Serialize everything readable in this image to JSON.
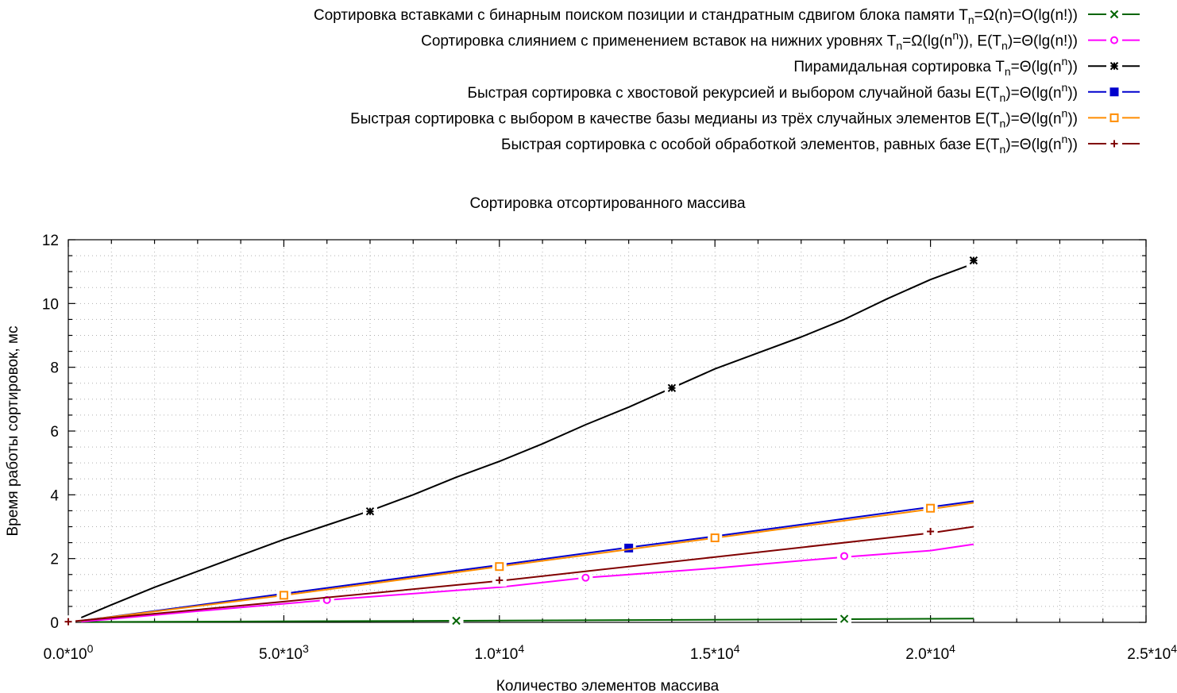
{
  "chart_data": {
    "type": "line",
    "title": "Сортировка отсортированного массива",
    "xlabel": "Количество элементов массива",
    "ylabel": "Время работы сортировок, мс",
    "xlim": [
      0,
      25000
    ],
    "ylim": [
      0,
      12
    ],
    "x_ticks": [
      {
        "value": 0,
        "mantissa": "0.0*10",
        "exp": "0"
      },
      {
        "value": 5000,
        "mantissa": "5.0*10",
        "exp": "3"
      },
      {
        "value": 10000,
        "mantissa": "1.0*10",
        "exp": "4"
      },
      {
        "value": 15000,
        "mantissa": "1.5*10",
        "exp": "4"
      },
      {
        "value": 20000,
        "mantissa": "2.0*10",
        "exp": "4"
      },
      {
        "value": 25000,
        "mantissa": "2.5*10",
        "exp": "4"
      }
    ],
    "y_ticks": [
      0,
      2,
      4,
      6,
      8,
      10,
      12
    ],
    "grid": true,
    "legend_position": "top-right",
    "series": [
      {
        "name_parts": [
          [
            "t",
            "Сортировка вставками с бинарным поиском позиции и стандратным сдвигом блока памяти T"
          ],
          [
            "sub",
            "n"
          ],
          [
            "t",
            "=Ω(n)=O(lg(n!))"
          ]
        ],
        "color": "#006400",
        "marker": "x",
        "x": [
          300,
          9000,
          18000,
          21000
        ],
        "y": [
          0.01,
          0.05,
          0.1,
          0.12
        ],
        "marker_points": [
          [
            9000,
            0.05
          ],
          [
            18000,
            0.11
          ]
        ]
      },
      {
        "name_parts": [
          [
            "t",
            "Сортировка слиянием с применением вставок на нижних уровнях T"
          ],
          [
            "sub",
            "n"
          ],
          [
            "t",
            "=Ω(lg(n"
          ],
          [
            "sup",
            "n"
          ],
          [
            "t",
            ")), E(T"
          ],
          [
            "sub",
            "n"
          ],
          [
            "t",
            ")=Θ(lg(n!))"
          ]
        ],
        "color": "#ff00ff",
        "marker": "circle",
        "x": [
          300,
          3000,
          6000,
          9000,
          10000,
          12000,
          15000,
          18000,
          20000,
          21000
        ],
        "y": [
          0.02,
          0.35,
          0.7,
          1.0,
          1.1,
          1.4,
          1.7,
          2.05,
          2.25,
          2.45
        ],
        "marker_points": [
          [
            6000,
            0.7
          ],
          [
            12000,
            1.4
          ],
          [
            18000,
            2.08
          ]
        ]
      },
      {
        "name_parts": [
          [
            "t",
            "Пирамидальная сортировка T"
          ],
          [
            "sub",
            "n"
          ],
          [
            "t",
            "=Θ(lg(n"
          ],
          [
            "sup",
            "n"
          ],
          [
            "t",
            "))"
          ]
        ],
        "color": "#000000",
        "marker": "star",
        "x": [
          300,
          1000,
          2000,
          3000,
          4000,
          5000,
          6000,
          7000,
          8000,
          9000,
          10000,
          11000,
          12000,
          13000,
          14000,
          15000,
          16000,
          17000,
          18000,
          19000,
          20000,
          21000
        ],
        "y": [
          0.15,
          0.55,
          1.1,
          1.6,
          2.1,
          2.6,
          3.05,
          3.5,
          4.0,
          4.55,
          5.05,
          5.6,
          6.2,
          6.75,
          7.35,
          7.95,
          8.45,
          8.95,
          9.5,
          10.15,
          10.75,
          11.25
        ],
        "marker_points": [
          [
            7000,
            3.48
          ],
          [
            14000,
            7.35
          ],
          [
            21000,
            11.35
          ]
        ]
      },
      {
        "name_parts": [
          [
            "t",
            "Быстрая сортировка с хвостовой рекурсией и выбором случайной базы E(T"
          ],
          [
            "sub",
            "n"
          ],
          [
            "t",
            ")=Θ(lg(n"
          ],
          [
            "sup",
            "n"
          ],
          [
            "t",
            "))"
          ]
        ],
        "color": "#0000cd",
        "marker": "square-filled",
        "x": [
          300,
          5000,
          10000,
          13000,
          15000,
          18000,
          21000
        ],
        "y": [
          0.05,
          0.9,
          1.8,
          2.35,
          2.7,
          3.25,
          3.8
        ],
        "marker_points": [
          [
            13000,
            2.33
          ]
        ]
      },
      {
        "name_parts": [
          [
            "t",
            "Быстрая сортировка с выбором в качестве базы медианы из трёх случайных элементов E(T"
          ],
          [
            "sub",
            "n"
          ],
          [
            "t",
            ")=Θ(lg(n"
          ],
          [
            "sup",
            "n"
          ],
          [
            "t",
            "))"
          ]
        ],
        "color": "#ff8c00",
        "marker": "square-open",
        "x": [
          300,
          5000,
          10000,
          15000,
          20000,
          21000
        ],
        "y": [
          0.05,
          0.85,
          1.75,
          2.65,
          3.55,
          3.75
        ],
        "marker_points": [
          [
            5000,
            0.85
          ],
          [
            10000,
            1.75
          ],
          [
            15000,
            2.65
          ],
          [
            20000,
            3.58
          ]
        ]
      },
      {
        "name_parts": [
          [
            "t",
            "Быстрая сортировка с особой обработкой элементов, равных базе E(T"
          ],
          [
            "sub",
            "n"
          ],
          [
            "t",
            ")=Θ(lg(n"
          ],
          [
            "sup",
            "n"
          ],
          [
            "t",
            "))"
          ]
        ],
        "color": "#800000",
        "marker": "plus",
        "x": [
          0,
          5000,
          10000,
          15000,
          20000,
          21000
        ],
        "y": [
          0.02,
          0.65,
          1.3,
          2.05,
          2.8,
          3.0
        ],
        "marker_points": [
          [
            0,
            0.02
          ],
          [
            10000,
            1.32
          ],
          [
            20000,
            2.85
          ]
        ]
      }
    ]
  }
}
